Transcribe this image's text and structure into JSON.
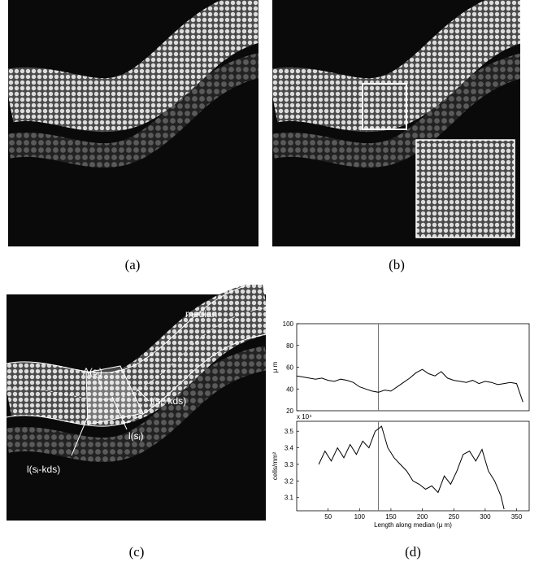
{
  "panels": [
    {
      "label": "(a)"
    },
    {
      "label": "(b)"
    },
    {
      "label": "(c)",
      "annotations": [
        "median",
        "A(sᵢ)",
        "l(sᵢ+kds)",
        "l(sᵢ)",
        "l(sᵢ-kds)"
      ]
    },
    {
      "label": "(d)"
    }
  ],
  "chart_data": [
    {
      "type": "line",
      "ylabel": "μ m",
      "xlim": [
        0,
        370
      ],
      "ylim": [
        20,
        100
      ],
      "yticks": [
        20,
        40,
        60,
        80,
        100
      ],
      "vline": 130,
      "color": "#000000",
      "x": [
        0,
        10,
        20,
        30,
        40,
        50,
        60,
        70,
        80,
        90,
        100,
        110,
        120,
        130,
        140,
        150,
        160,
        170,
        180,
        190,
        200,
        210,
        220,
        230,
        240,
        250,
        260,
        270,
        280,
        290,
        300,
        310,
        320,
        330,
        340,
        350,
        360
      ],
      "values": [
        52,
        51,
        50,
        49,
        50,
        48,
        47,
        49,
        48,
        46,
        42,
        40,
        38,
        37,
        39,
        38,
        42,
        46,
        50,
        55,
        58,
        54,
        52,
        56,
        50,
        48,
        47,
        46,
        48,
        45,
        47,
        46,
        44,
        45,
        46,
        45,
        28
      ]
    },
    {
      "type": "line",
      "ylabel": "cells/mm²",
      "multiplier": "x 10⁴",
      "xlabel": "Length along median (μ m)",
      "xlim": [
        0,
        370
      ],
      "ylim": [
        30200,
        35600
      ],
      "xticks": [
        50,
        100,
        150,
        200,
        250,
        300,
        350
      ],
      "yticks": [
        {
          "value": 31000,
          "label": "3.1"
        },
        {
          "value": 32000,
          "label": "3.2"
        },
        {
          "value": 33000,
          "label": "3.3"
        },
        {
          "value": 34000,
          "label": "3.4"
        },
        {
          "value": 35000,
          "label": "3.5"
        }
      ],
      "vline": 130,
      "color": "#000000",
      "x": [
        35,
        45,
        55,
        65,
        75,
        85,
        95,
        105,
        115,
        125,
        135,
        145,
        155,
        165,
        175,
        185,
        195,
        205,
        215,
        225,
        235,
        245,
        255,
        265,
        275,
        285,
        295,
        305,
        315,
        325,
        330
      ],
      "values": [
        33000,
        33800,
        33200,
        34000,
        33400,
        34200,
        33600,
        34400,
        34000,
        35000,
        35300,
        34000,
        33400,
        33000,
        32600,
        32000,
        31800,
        31500,
        31700,
        31300,
        32300,
        31800,
        32600,
        33600,
        33800,
        33200,
        33900,
        32600,
        32000,
        31100,
        30300
      ]
    }
  ]
}
